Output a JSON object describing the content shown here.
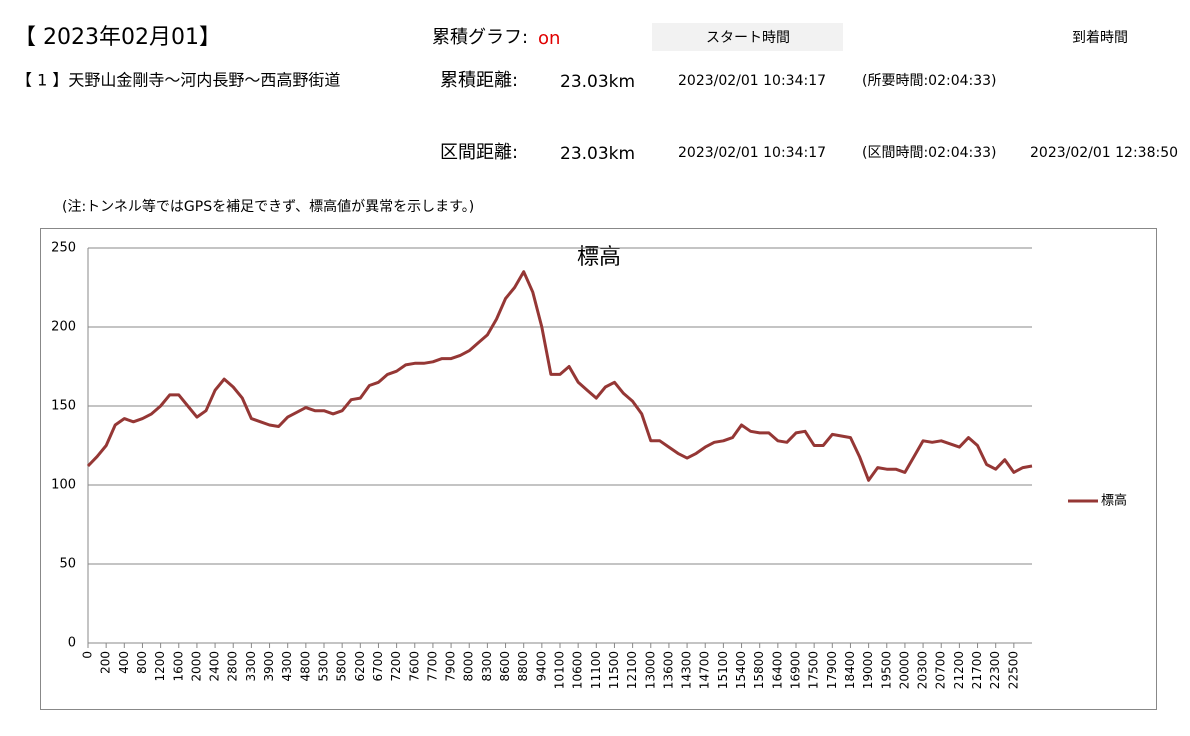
{
  "header": {
    "date": "【 2023年02月01】",
    "graph_label": "累積グラフ:",
    "graph_state": "on",
    "start_label": "スタート時間",
    "arrive_label": "到着時間",
    "route": "【 1 】天野山金剛寺～河内長野～西高野街道",
    "total_label": "累積距離:",
    "total_distance": "23.03km",
    "total_start": "2023/02/01 10:34:17",
    "total_time": "(所要時間:02:04:33)",
    "section_label": "区間距離:",
    "section_distance": "23.03km",
    "section_start": "2023/02/01 10:34:17",
    "section_time": "(区間時間:02:04:33)",
    "section_arrive": "2023/02/01 12:38:50",
    "note": "(注:トンネル等ではGPSを補足できず、標高値が異常を示します。)"
  },
  "chart_data": {
    "type": "line",
    "title": "標高",
    "categories": [
      0,
      null,
      200,
      null,
      400,
      null,
      800,
      null,
      1200,
      null,
      1600,
      null,
      2000,
      null,
      2400,
      null,
      2800,
      null,
      3300,
      null,
      3900,
      null,
      4300,
      null,
      4800,
      null,
      5300,
      null,
      5800,
      null,
      6200,
      null,
      6700,
      null,
      7200,
      null,
      7600,
      null,
      7700,
      null,
      7900,
      null,
      8000,
      null,
      8300,
      null,
      8600,
      null,
      8800,
      null,
      9400,
      null,
      10100,
      null,
      10600,
      null,
      11100,
      null,
      11500,
      null,
      12100,
      null,
      13000,
      null,
      13600,
      null,
      14300,
      null,
      14700,
      null,
      15100,
      null,
      15400,
      null,
      15800,
      null,
      16400,
      null,
      16900,
      null,
      17500,
      null,
      17900,
      null,
      18400,
      null,
      19000,
      null,
      19500,
      null,
      20000,
      null,
      20300,
      null,
      20700,
      null,
      21200,
      null,
      21700,
      null,
      22300,
      null,
      22500,
      null,
      null
    ],
    "series": [
      {
        "name": "標高",
        "color": "#953735",
        "values": [
          112,
          118,
          125,
          138,
          142,
          140,
          142,
          145,
          150,
          157,
          157,
          150,
          143,
          147,
          160,
          167,
          162,
          155,
          142,
          140,
          138,
          137,
          143,
          146,
          149,
          147,
          147,
          145,
          147,
          154,
          155,
          163,
          165,
          170,
          172,
          176,
          177,
          177,
          178,
          180,
          180,
          182,
          185,
          190,
          195,
          205,
          218,
          225,
          235,
          222,
          200,
          170,
          170,
          175,
          165,
          160,
          155,
          162,
          165,
          158,
          153,
          145,
          128,
          128,
          124,
          120,
          117,
          120,
          124,
          127,
          128,
          130,
          138,
          134,
          133,
          133,
          128,
          127,
          133,
          134,
          125,
          125,
          132,
          131,
          130,
          118,
          103,
          111,
          110,
          110,
          108,
          118,
          128,
          127,
          128,
          126,
          124,
          130,
          125,
          113,
          110,
          116,
          108,
          111,
          112
        ]
      }
    ],
    "ylim": [
      0,
      250
    ],
    "yticks": [
      0,
      50,
      100,
      150,
      200,
      250
    ],
    "grid": true,
    "legend": "right"
  }
}
